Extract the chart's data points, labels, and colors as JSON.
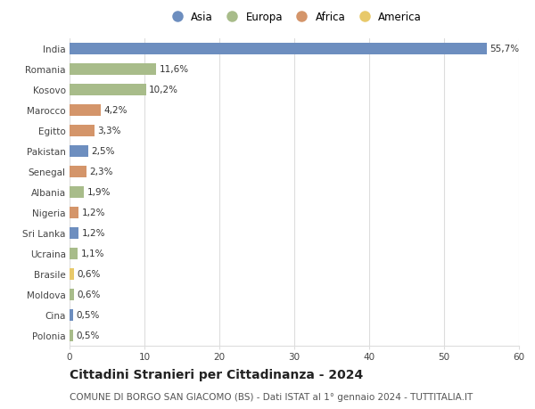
{
  "countries": [
    "India",
    "Romania",
    "Kosovo",
    "Marocco",
    "Egitto",
    "Pakistan",
    "Senegal",
    "Albania",
    "Nigeria",
    "Sri Lanka",
    "Ucraina",
    "Brasile",
    "Moldova",
    "Cina",
    "Polonia"
  ],
  "values": [
    55.7,
    11.6,
    10.2,
    4.2,
    3.3,
    2.5,
    2.3,
    1.9,
    1.2,
    1.2,
    1.1,
    0.6,
    0.6,
    0.5,
    0.5
  ],
  "labels": [
    "55,7%",
    "11,6%",
    "10,2%",
    "4,2%",
    "3,3%",
    "2,5%",
    "2,3%",
    "1,9%",
    "1,2%",
    "1,2%",
    "1,1%",
    "0,6%",
    "0,6%",
    "0,5%",
    "0,5%"
  ],
  "continents": [
    "Asia",
    "Europa",
    "Europa",
    "Africa",
    "Africa",
    "Asia",
    "Africa",
    "Europa",
    "Africa",
    "Asia",
    "Europa",
    "America",
    "Europa",
    "Asia",
    "Europa"
  ],
  "continent_colors": {
    "Asia": "#6d8ebf",
    "Europa": "#a8bc8a",
    "Africa": "#d4956a",
    "America": "#e8c96a"
  },
  "legend_order": [
    "Asia",
    "Europa",
    "Africa",
    "America"
  ],
  "title": "Cittadini Stranieri per Cittadinanza - 2024",
  "subtitle": "COMUNE DI BORGO SAN GIACOMO (BS) - Dati ISTAT al 1° gennaio 2024 - TUTTITALIA.IT",
  "xlim": [
    0,
    60
  ],
  "xticks": [
    0,
    10,
    20,
    30,
    40,
    50,
    60
  ],
  "background_color": "#ffffff",
  "grid_color": "#dddddd",
  "bar_height": 0.55,
  "title_fontsize": 10,
  "subtitle_fontsize": 7.5,
  "tick_fontsize": 7.5,
  "label_fontsize": 7.5,
  "legend_fontsize": 8.5
}
